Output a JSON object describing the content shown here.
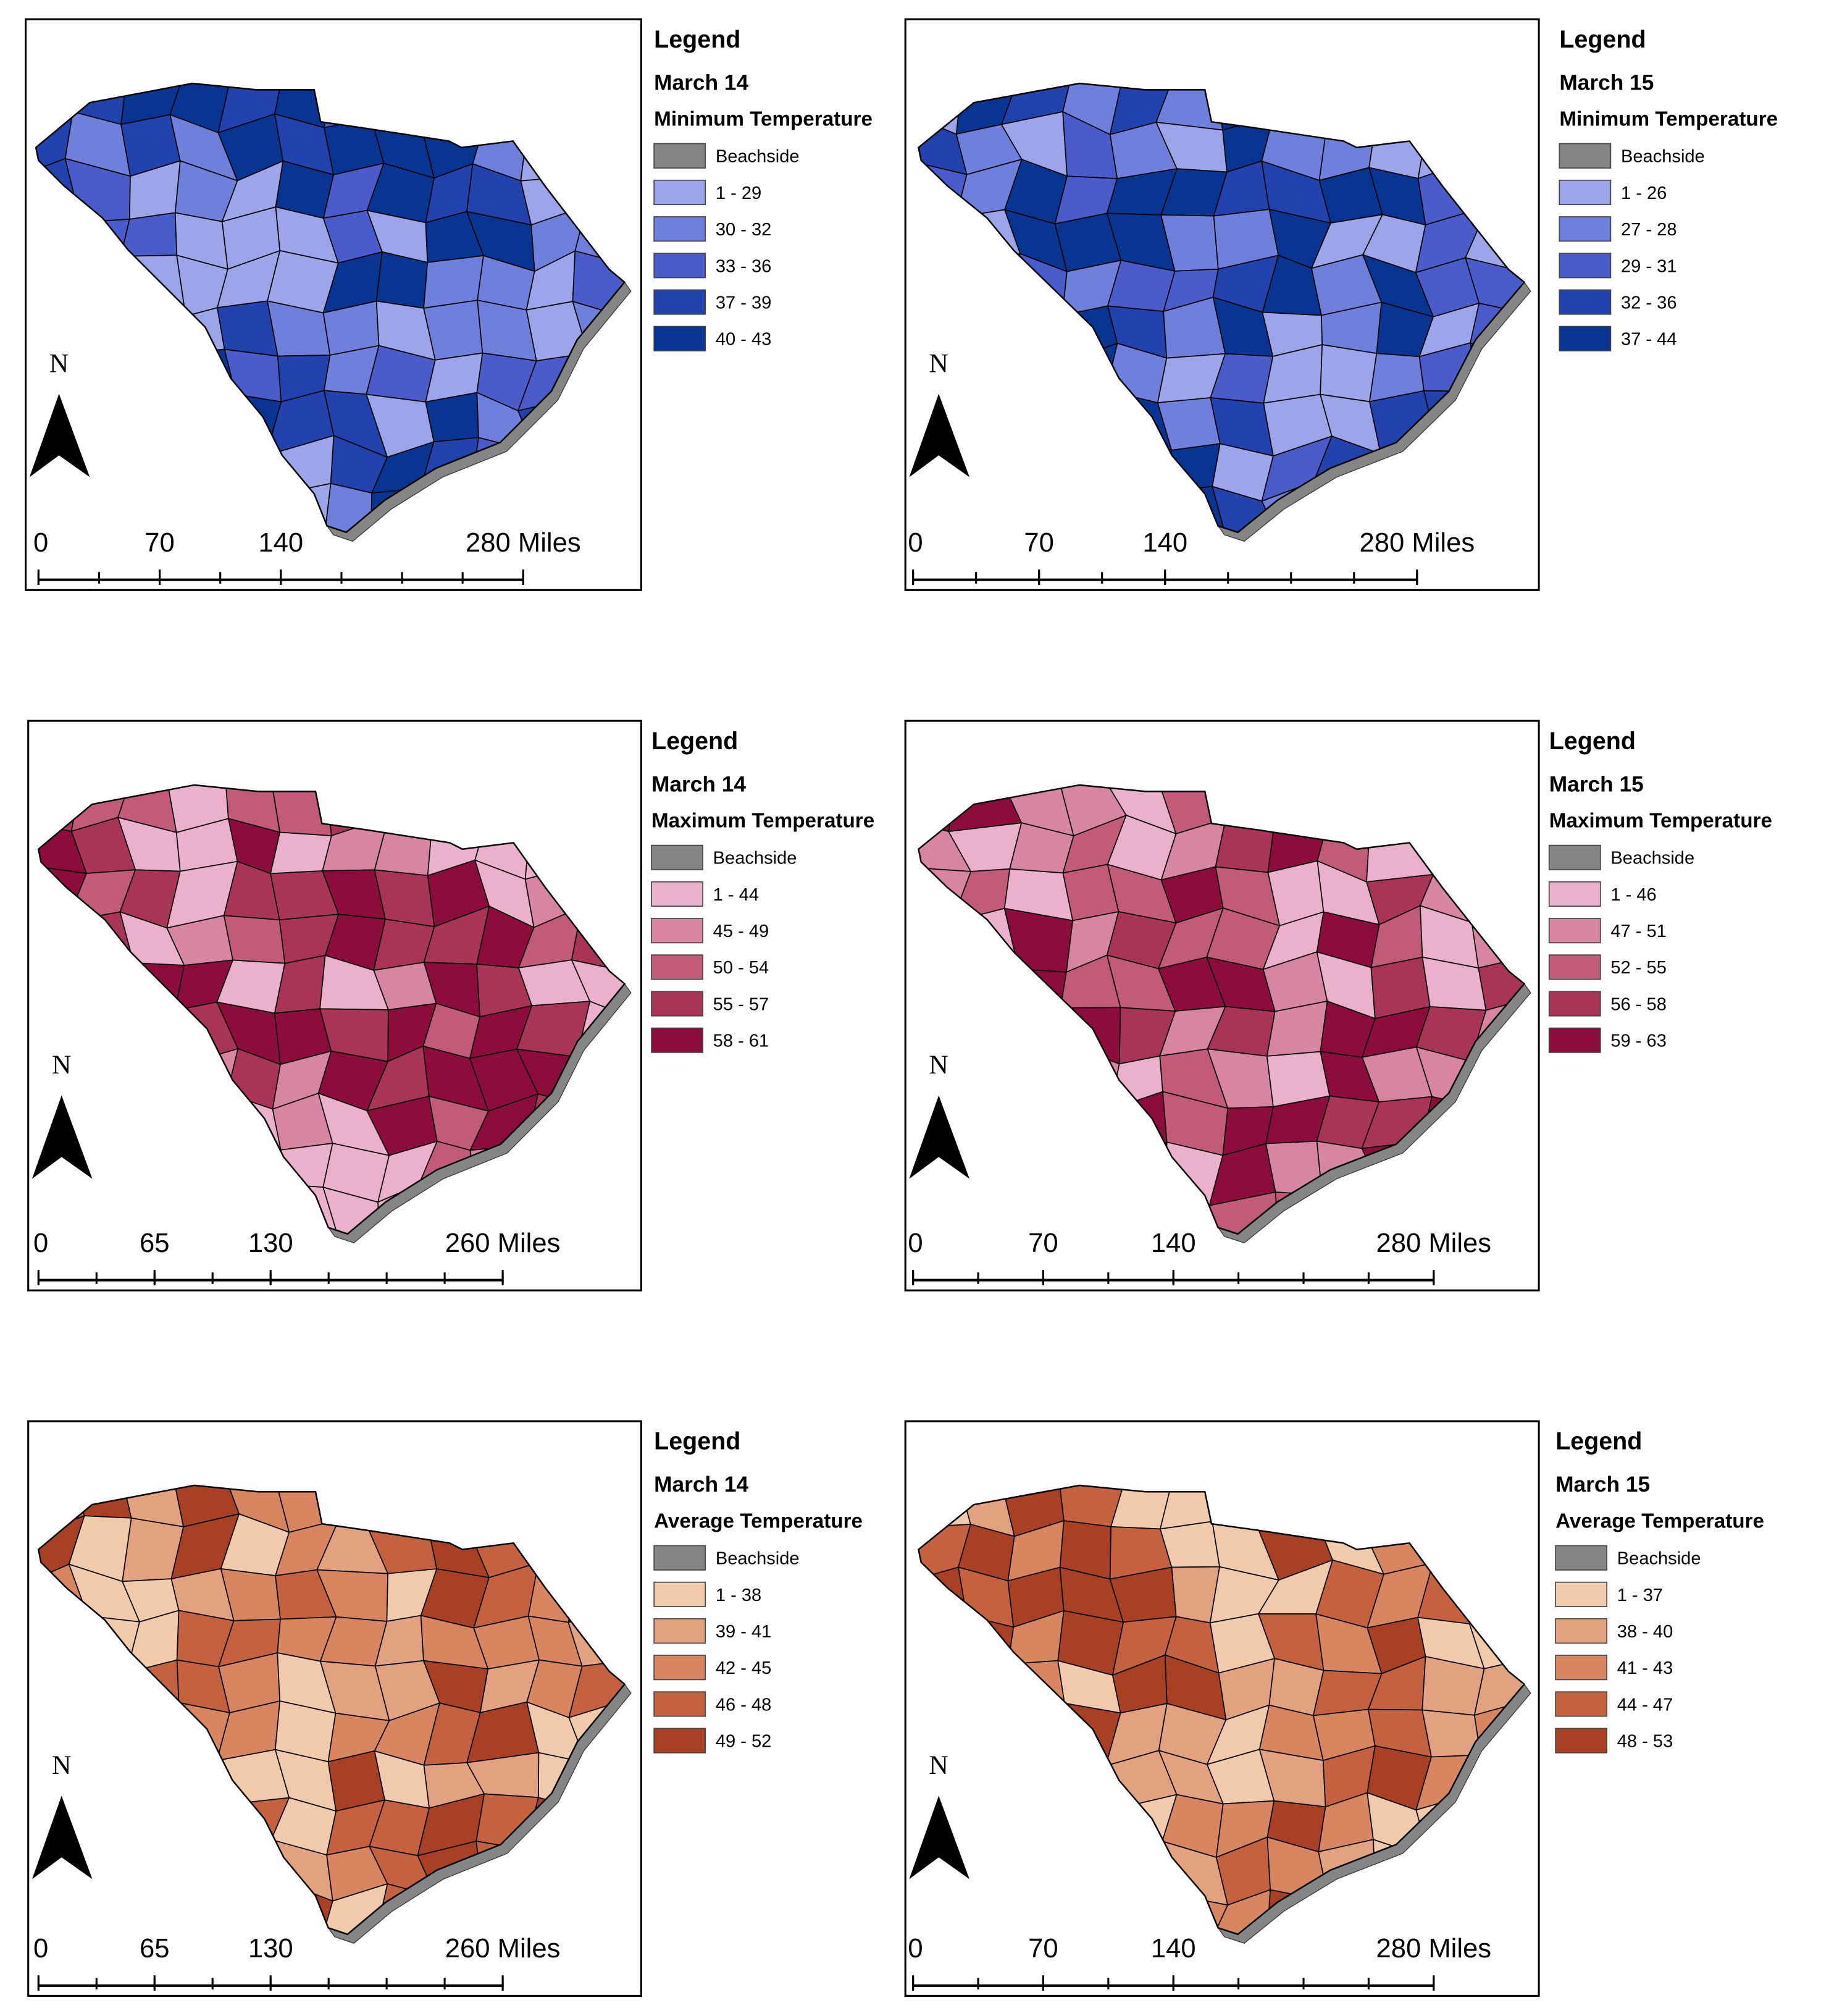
{
  "panels": [
    {
      "legend_title": "Legend",
      "date": "March 14",
      "variable": "Minimum Temperature",
      "north_label": "N",
      "classes": [
        {
          "label": "Beachside",
          "color": "#858585"
        },
        {
          "label": "1 - 29",
          "color": "#9ca5e9"
        },
        {
          "label": "30 - 32",
          "color": "#6f80dc"
        },
        {
          "label": "33 - 36",
          "color": "#4a5cca"
        },
        {
          "label": "37 - 39",
          "color": "#2243ae"
        },
        {
          "label": "40 - 43",
          "color": "#073591"
        }
      ],
      "scale_bar": [
        0,
        70,
        140,
        {
          "value": 280,
          "label": "280 Miles"
        }
      ]
    },
    {
      "legend_title": "Legend",
      "date": "March 15",
      "variable": "Minimum Temperature",
      "north_label": "N",
      "classes": [
        {
          "label": "Beachside",
          "color": "#858585"
        },
        {
          "label": "1 - 26",
          "color": "#9ca5e9"
        },
        {
          "label": "27 - 28",
          "color": "#6f80dc"
        },
        {
          "label": "29 - 31",
          "color": "#4a5cca"
        },
        {
          "label": "32 - 36",
          "color": "#2243ae"
        },
        {
          "label": "37 - 44",
          "color": "#073591"
        }
      ],
      "scale_bar": [
        0,
        70,
        140,
        {
          "value": 280,
          "label": "280 Miles"
        }
      ]
    },
    {
      "legend_title": "Legend",
      "date": "March 14",
      "variable": "Maximum Temperature",
      "north_label": "N",
      "classes": [
        {
          "label": "Beachside",
          "color": "#858585"
        },
        {
          "label": "1 - 44",
          "color": "#eab0cc"
        },
        {
          "label": "45 - 49",
          "color": "#d884a3"
        },
        {
          "label": "50 - 54",
          "color": "#c25b7a"
        },
        {
          "label": "55 - 57",
          "color": "#a83558"
        },
        {
          "label": "58 - 61",
          "color": "#8c0d3b"
        }
      ],
      "scale_bar": [
        0,
        65,
        130,
        {
          "value": 260,
          "label": "260 Miles"
        }
      ]
    },
    {
      "legend_title": "Legend",
      "date": "March 15",
      "variable": "Maximum Temperature",
      "north_label": "N",
      "classes": [
        {
          "label": "Beachside",
          "color": "#858585"
        },
        {
          "label": "1 - 46",
          "color": "#eab0cc"
        },
        {
          "label": "47 - 51",
          "color": "#d884a3"
        },
        {
          "label": "52 - 55",
          "color": "#c25b7a"
        },
        {
          "label": "56 - 58",
          "color": "#a83558"
        },
        {
          "label": "59 - 63",
          "color": "#8c0d3b"
        }
      ],
      "scale_bar": [
        0,
        70,
        140,
        {
          "value": 280,
          "label": "280 Miles"
        }
      ]
    },
    {
      "legend_title": "Legend",
      "date": "March 14",
      "variable": "Average Temperature",
      "north_label": "N",
      "classes": [
        {
          "label": "Beachside",
          "color": "#858585"
        },
        {
          "label": "1 - 38",
          "color": "#f1caab"
        },
        {
          "label": "39 - 41",
          "color": "#e2a27f"
        },
        {
          "label": "42 - 45",
          "color": "#d88660"
        },
        {
          "label": "46 - 48",
          "color": "#c4613f"
        },
        {
          "label": "49 - 52",
          "color": "#a84024"
        }
      ],
      "scale_bar": [
        0,
        65,
        130,
        {
          "value": 260,
          "label": "260 Miles"
        }
      ]
    },
    {
      "legend_title": "Legend",
      "date": "March 15",
      "variable": "Average Temperature",
      "north_label": "N",
      "classes": [
        {
          "label": "Beachside",
          "color": "#858585"
        },
        {
          "label": "1 - 37",
          "color": "#f1caab"
        },
        {
          "label": "38 - 40",
          "color": "#e2a27f"
        },
        {
          "label": "41 - 43",
          "color": "#d88660"
        },
        {
          "label": "44 - 47",
          "color": "#c4613f"
        },
        {
          "label": "48 - 53",
          "color": "#a84024"
        }
      ],
      "scale_bar": [
        0,
        70,
        140,
        {
          "value": 280,
          "label": "280 Miles"
        }
      ]
    }
  ]
}
